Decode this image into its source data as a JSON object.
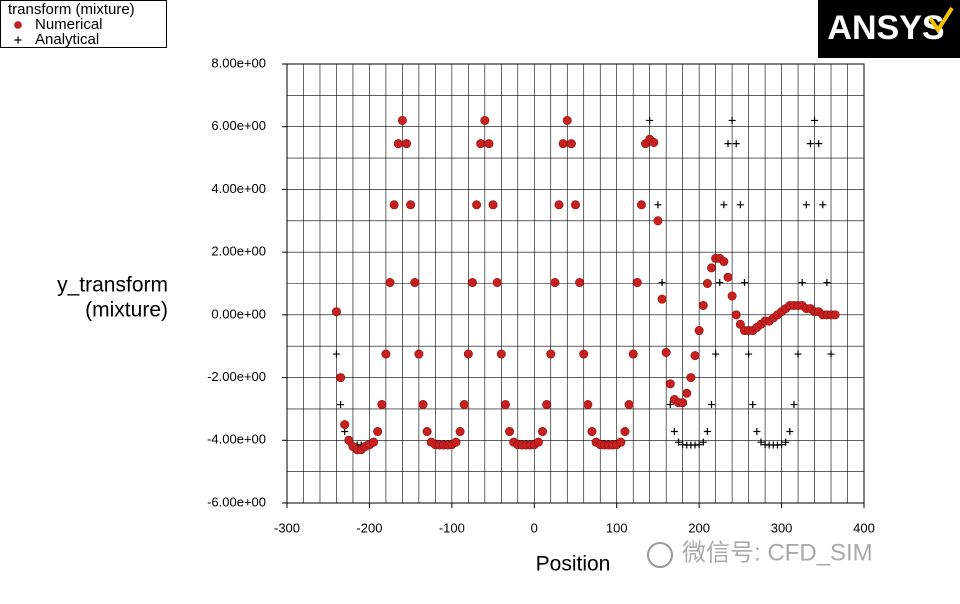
{
  "chart_data": {
    "type": "scatter",
    "legend_title": "transform (mixture)",
    "xlabel": "Position",
    "ylabel": [
      "y_transform",
      "(mixture)"
    ],
    "logo": "ANSYS",
    "watermark": "微信号: CFD_SIM",
    "xlim": [
      -300,
      400
    ],
    "ylim": [
      -6,
      8
    ],
    "xticks": [
      -300,
      -200,
      -100,
      0,
      100,
      200,
      300,
      400
    ],
    "yticks": [
      {
        "value": -6,
        "label": "-6.00e+00"
      },
      {
        "value": -4,
        "label": "-4.00e+00"
      },
      {
        "value": -2,
        "label": "-2.00e+00"
      },
      {
        "value": 0,
        "label": "0.00e+00"
      },
      {
        "value": 2,
        "label": "2.00e+00"
      },
      {
        "value": 4,
        "label": "4.00e+00"
      },
      {
        "value": 6,
        "label": "6.00e+00"
      },
      {
        "value": 8,
        "label": "8.00e+00"
      }
    ],
    "xgrid": [
      -300,
      -280,
      -260,
      -240,
      -220,
      -200,
      -180,
      -160,
      -140,
      -120,
      -100,
      -80,
      -60,
      -40,
      -20,
      0,
      20,
      40,
      60,
      80,
      100,
      120,
      140,
      160,
      180,
      200,
      220,
      240,
      260,
      280,
      300,
      320,
      340,
      360,
      380,
      400
    ],
    "ygrid": [
      -6,
      -5,
      -4,
      -3,
      -2,
      -1,
      0,
      1,
      2,
      3,
      4,
      5,
      6,
      7,
      8
    ],
    "grid": true,
    "legend": "top-left",
    "series": [
      {
        "name": "Numerical",
        "color": "#c8201e",
        "marker": "circle",
        "x": [
          -240,
          -235,
          -230,
          -225,
          -220,
          -215,
          -210,
          -205,
          -200,
          -195,
          -190,
          -185,
          -180,
          -175,
          -170,
          -165,
          -160,
          -155,
          -150,
          -145,
          -140,
          -135,
          -130,
          -125,
          -120,
          -115,
          -110,
          -105,
          -100,
          -95,
          -90,
          -85,
          -80,
          -75,
          -70,
          -65,
          -60,
          -55,
          -50,
          -45,
          -40,
          -35,
          -30,
          -25,
          -20,
          -15,
          -10,
          -5,
          0,
          5,
          10,
          15,
          20,
          25,
          30,
          35,
          40,
          45,
          50,
          55,
          60,
          65,
          70,
          75,
          80,
          85,
          90,
          95,
          100,
          105,
          110,
          115,
          120,
          125,
          130,
          135,
          140,
          145,
          150,
          155,
          160,
          165,
          170,
          175,
          180,
          185,
          190,
          195,
          200,
          205,
          210,
          215,
          220,
          225,
          230,
          235,
          240,
          245,
          250,
          255,
          260,
          265,
          270,
          275,
          280,
          285,
          290,
          295,
          300,
          305,
          310,
          315,
          320,
          325,
          330,
          335,
          340,
          345,
          350,
          355,
          360,
          365
        ],
        "values": [
          0.1,
          -2.0,
          -3.5,
          -4.0,
          -4.2,
          -4.3,
          -4.3,
          -4.2,
          -4.14,
          -4.06,
          -3.72,
          -2.86,
          -1.25,
          1.03,
          3.51,
          5.46,
          6.2,
          5.46,
          3.51,
          1.03,
          -1.25,
          -2.86,
          -3.72,
          -4.06,
          -4.14,
          -4.15,
          -4.15,
          -4.15,
          -4.14,
          -4.06,
          -3.72,
          -2.86,
          -1.25,
          1.03,
          3.51,
          5.46,
          6.2,
          5.46,
          3.51,
          1.03,
          -1.25,
          -2.86,
          -3.72,
          -4.06,
          -4.14,
          -4.15,
          -4.15,
          -4.15,
          -4.14,
          -4.06,
          -3.72,
          -2.86,
          -1.25,
          1.03,
          3.51,
          5.46,
          6.2,
          5.46,
          3.51,
          1.03,
          -1.25,
          -2.86,
          -3.72,
          -4.06,
          -4.14,
          -4.15,
          -4.15,
          -4.15,
          -4.14,
          -4.06,
          -3.72,
          -2.86,
          -1.25,
          1.03,
          3.51,
          5.46,
          5.6,
          5.5,
          3.0,
          0.5,
          -1.2,
          -2.2,
          -2.7,
          -2.8,
          -2.8,
          -2.5,
          -2.0,
          -1.3,
          -0.5,
          0.3,
          1.0,
          1.5,
          1.8,
          1.8,
          1.7,
          1.2,
          0.6,
          0.0,
          -0.3,
          -0.5,
          -0.5,
          -0.5,
          -0.4,
          -0.3,
          -0.2,
          -0.2,
          -0.1,
          0.0,
          0.1,
          0.2,
          0.3,
          0.3,
          0.3,
          0.3,
          0.2,
          0.2,
          0.1,
          0.1,
          0.0,
          0.0,
          0.0,
          0.0
        ]
      },
      {
        "name": "Analytical",
        "color": "#000000",
        "marker": "plus",
        "x": [
          -240,
          -235,
          -230,
          -225,
          -220,
          -215,
          -210,
          -205,
          -200,
          -195,
          -190,
          -185,
          -180,
          -175,
          -170,
          -165,
          -160,
          -155,
          -150,
          -145,
          -140,
          -135,
          -130,
          -125,
          -120,
          -115,
          -110,
          -105,
          -100,
          -95,
          -90,
          -85,
          -80,
          -75,
          -70,
          -65,
          -60,
          -55,
          -50,
          -45,
          -40,
          -35,
          -30,
          -25,
          -20,
          -15,
          -10,
          -5,
          0,
          5,
          10,
          15,
          20,
          25,
          30,
          35,
          40,
          45,
          50,
          55,
          60,
          65,
          70,
          75,
          80,
          85,
          90,
          95,
          100,
          105,
          110,
          115,
          120,
          125,
          130,
          135,
          140,
          145,
          150,
          155,
          160,
          165,
          170,
          175,
          180,
          185,
          190,
          195,
          200,
          205,
          210,
          215,
          220,
          225,
          230,
          235,
          240,
          245,
          250,
          255,
          260,
          265,
          270,
          275,
          280,
          285,
          290,
          295,
          300,
          305,
          310,
          315,
          320,
          325,
          330,
          335,
          340,
          345,
          350,
          355,
          360
        ],
        "values": [
          -1.25,
          -2.86,
          -3.72,
          -4.06,
          -4.14,
          -4.15,
          -4.15,
          -4.15,
          -4.14,
          -4.06,
          -3.72,
          -2.86,
          -1.25,
          1.03,
          3.51,
          5.46,
          6.2,
          5.46,
          3.51,
          1.03,
          -1.25,
          -2.86,
          -3.72,
          -4.06,
          -4.14,
          -4.15,
          -4.15,
          -4.15,
          -4.14,
          -4.06,
          -3.72,
          -2.86,
          -1.25,
          1.03,
          3.51,
          5.46,
          6.2,
          5.46,
          3.51,
          1.03,
          -1.25,
          -2.86,
          -3.72,
          -4.06,
          -4.14,
          -4.15,
          -4.15,
          -4.15,
          -4.14,
          -4.06,
          -3.72,
          -2.86,
          -1.25,
          1.03,
          3.51,
          5.46,
          6.2,
          5.46,
          3.51,
          1.03,
          -1.25,
          -2.86,
          -3.72,
          -4.06,
          -4.14,
          -4.15,
          -4.15,
          -4.15,
          -4.14,
          -4.06,
          -3.72,
          -2.86,
          -1.25,
          1.03,
          3.51,
          5.46,
          6.2,
          5.46,
          3.51,
          1.03,
          -1.25,
          -2.86,
          -3.72,
          -4.06,
          -4.14,
          -4.15,
          -4.15,
          -4.15,
          -4.14,
          -4.06,
          -3.72,
          -2.86,
          -1.25,
          1.03,
          3.51,
          5.46,
          6.2,
          5.46,
          3.51,
          1.03,
          -1.25,
          -2.86,
          -3.72,
          -4.06,
          -4.14,
          -4.15,
          -4.15,
          -4.15,
          -4.14,
          -4.06,
          -3.72,
          -2.86,
          -1.25,
          1.03,
          3.51,
          5.46,
          6.2,
          5.46,
          3.51,
          1.03,
          -1.25
        ]
      }
    ]
  }
}
